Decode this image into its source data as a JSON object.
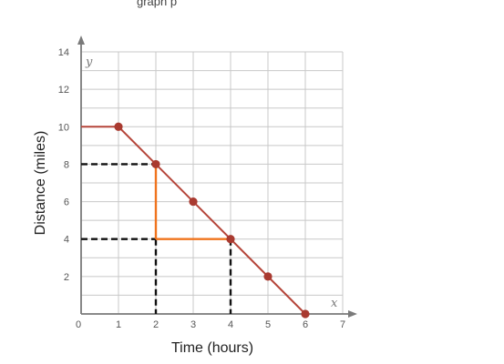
{
  "header_text": "graph                                           p",
  "chart_data": {
    "type": "line",
    "title": "",
    "xlabel": "Time (hours)",
    "ylabel": "Distance (miles)",
    "x_axis_var": "x",
    "y_axis_var": "y",
    "xlim": [
      0,
      7
    ],
    "ylim": [
      0,
      14
    ],
    "x_ticks": [
      "0",
      "1",
      "2",
      "3",
      "4",
      "5",
      "6",
      "7"
    ],
    "y_ticks": [
      "2",
      "4",
      "6",
      "8",
      "10",
      "12",
      "14"
    ],
    "grid": true,
    "series": [
      {
        "x": [
          0,
          1,
          2,
          3,
          4,
          5,
          6
        ],
        "y": [
          10,
          10,
          8,
          6,
          4,
          2,
          0
        ],
        "markers_at": [
          [
            1,
            10
          ],
          [
            2,
            8
          ],
          [
            3,
            6
          ],
          [
            4,
            4
          ],
          [
            5,
            2
          ],
          [
            6,
            0
          ]
        ]
      }
    ],
    "annotations": {
      "slope_triangle": {
        "vertices": [
          [
            2,
            8
          ],
          [
            2,
            4
          ],
          [
            4,
            4
          ]
        ]
      },
      "dashed_guides": [
        {
          "from": [
            0,
            8
          ],
          "to": [
            2,
            8
          ]
        },
        {
          "from": [
            0,
            4
          ],
          "to": [
            2,
            4
          ]
        },
        {
          "from": [
            2,
            4
          ],
          "to": [
            2,
            0
          ]
        },
        {
          "from": [
            4,
            4
          ],
          "to": [
            4,
            0
          ]
        }
      ]
    },
    "colors": {
      "line": "#b5453a",
      "marker": "#a93a30",
      "triangle": "#f0741e",
      "grid": "#c8c8c8",
      "axis": "#7a7a7a",
      "dashed": "#111111"
    }
  }
}
